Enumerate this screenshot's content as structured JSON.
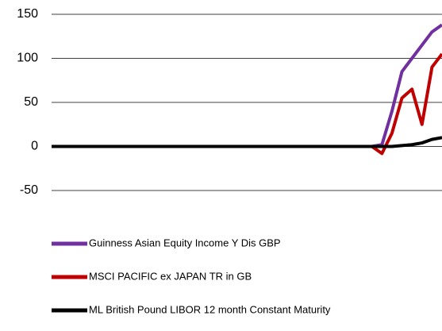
{
  "chart_data": {
    "type": "line",
    "categories": [
      null,
      null,
      null,
      null,
      null,
      null,
      null,
      null,
      null,
      null,
      null,
      null,
      null,
      null,
      null,
      null,
      null,
      null,
      null,
      null,
      null,
      null,
      null,
      null,
      null,
      null,
      null,
      null,
      null,
      null,
      null,
      null,
      null,
      null,
      null,
      null,
      null,
      null,
      null,
      null
    ],
    "series": [
      {
        "name": "Guinness Asian Equity Income Y Dis GBP",
        "color": "#7030a0",
        "values": [
          0,
          0,
          0,
          0,
          0,
          0,
          0,
          0,
          0,
          0,
          0,
          0,
          0,
          0,
          0,
          0,
          0,
          0,
          0,
          0,
          0,
          0,
          0,
          0,
          0,
          0,
          0,
          0,
          0,
          0,
          0,
          0,
          0,
          2,
          40,
          85,
          100,
          115,
          130,
          138
        ]
      },
      {
        "name": "MSCI PACIFIC ex JAPAN TR in GB",
        "color": "#c00000",
        "values": [
          0,
          0,
          0,
          0,
          0,
          0,
          0,
          0,
          0,
          0,
          0,
          0,
          0,
          0,
          0,
          0,
          0,
          0,
          0,
          0,
          0,
          0,
          0,
          0,
          0,
          0,
          0,
          0,
          0,
          0,
          0,
          0,
          0,
          -8,
          15,
          55,
          65,
          25,
          90,
          105
        ]
      },
      {
        "name": "ML British Pound LIBOR 12 month Constant Maturity",
        "color": "#000000",
        "values": [
          0,
          0,
          0,
          0,
          0,
          0,
          0,
          0,
          0,
          0,
          0,
          0,
          0,
          0,
          0,
          0,
          0,
          0,
          0,
          0,
          0,
          0,
          0,
          0,
          0,
          0,
          0,
          0,
          0,
          0,
          0,
          0,
          0,
          0,
          0,
          1,
          2,
          4,
          8,
          10
        ]
      }
    ],
    "ylim": [
      -50,
      150
    ],
    "yticks": [
      -50,
      0,
      50,
      100,
      150
    ],
    "grid": true
  }
}
